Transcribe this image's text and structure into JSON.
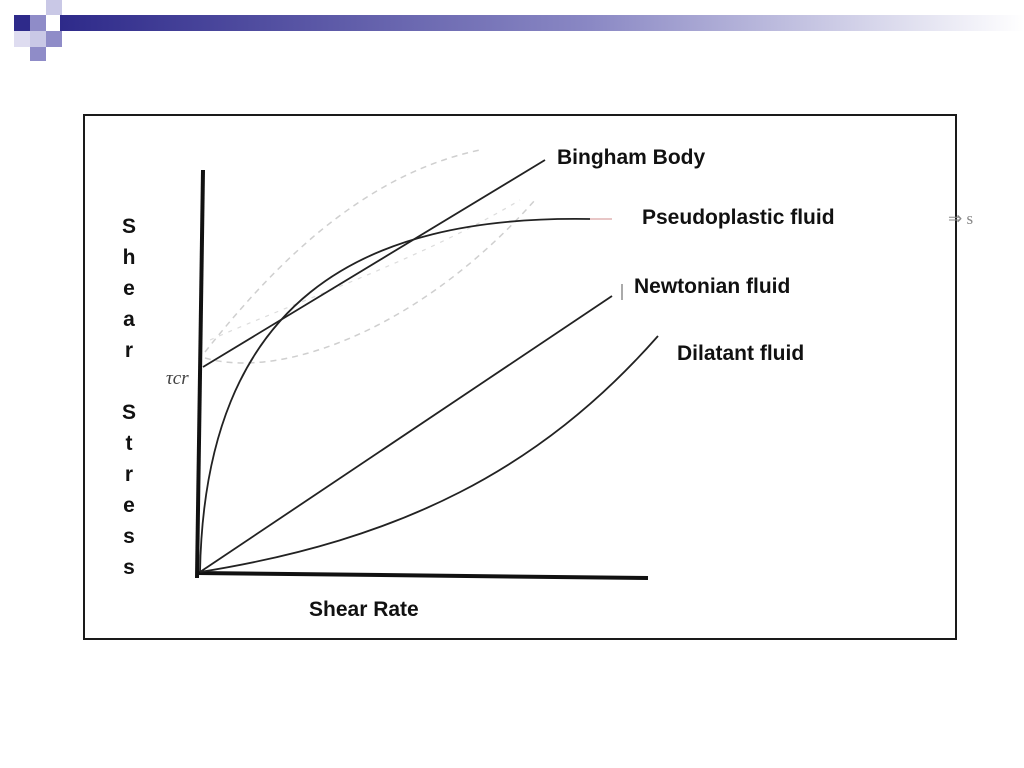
{
  "theme": {
    "accent": "#2e2a8a",
    "accent_light": "#8f8cc8",
    "ink": "#111111",
    "ghost": "#c9c9c9"
  },
  "chart_data": {
    "type": "line",
    "xlabel": "Shear Rate",
    "ylabel": "Shear Stress",
    "yield_stress_label": "τcr",
    "side_note": "⇒ s",
    "series": [
      {
        "name": "Bingham Body",
        "shape": "linear with yield stress"
      },
      {
        "name": "Pseudoplastic fluid",
        "shape": "concave down"
      },
      {
        "name": "Newtonian fluid",
        "shape": "linear through origin"
      },
      {
        "name": "Dilatant fluid",
        "shape": "concave up"
      }
    ]
  }
}
